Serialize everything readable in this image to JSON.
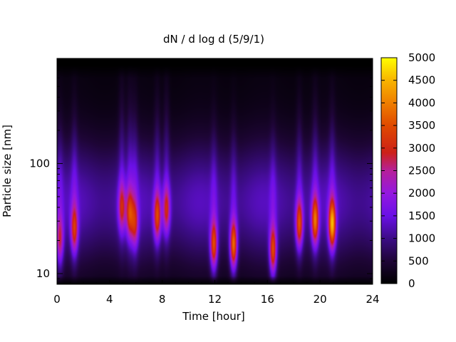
{
  "chart_data": {
    "type": "heatmap",
    "title": "dN / d log d (5/9/1)",
    "xlabel": "Time [hour]",
    "ylabel": "Particle size [nm]",
    "xlim": [
      0,
      24
    ],
    "x_ticks": [
      0,
      4,
      8,
      12,
      16,
      20,
      24
    ],
    "y_scale": "log",
    "ylim": [
      8,
      900
    ],
    "y_ticks": [
      10,
      100
    ],
    "colorbar": {
      "min": 0,
      "max": 5000,
      "ticks": [
        0,
        500,
        1000,
        1500,
        2000,
        2500,
        3000,
        3500,
        4000,
        4500,
        5000
      ],
      "colormap": "black-purple-red-orange-yellow"
    },
    "events": [
      {
        "time": 0.2,
        "size_nm": 20,
        "peak": 2700
      },
      {
        "time": 1.3,
        "size_nm": 25,
        "peak": 3000
      },
      {
        "time": 4.9,
        "size_nm": 40,
        "peak": 2700
      },
      {
        "time": 5.5,
        "size_nm": 35,
        "peak": 2900
      },
      {
        "time": 5.9,
        "size_nm": 28,
        "peak": 2600
      },
      {
        "time": 7.6,
        "size_nm": 33,
        "peak": 3200
      },
      {
        "time": 8.3,
        "size_nm": 38,
        "peak": 2800
      },
      {
        "time": 11.9,
        "size_nm": 18,
        "peak": 3500
      },
      {
        "time": 13.4,
        "size_nm": 18,
        "peak": 3900
      },
      {
        "time": 16.4,
        "size_nm": 16,
        "peak": 3500
      },
      {
        "time": 18.4,
        "size_nm": 28,
        "peak": 3400
      },
      {
        "time": 19.6,
        "size_nm": 30,
        "peak": 3600
      },
      {
        "time": 20.9,
        "size_nm": 28,
        "peak": 4200
      }
    ]
  },
  "colors": {
    "colormap_stops": [
      "#000000",
      "#3a0a6e",
      "#7a10e8",
      "#b01cd0",
      "#cc2400",
      "#e86a00",
      "#f8a800",
      "#ffff00"
    ]
  }
}
